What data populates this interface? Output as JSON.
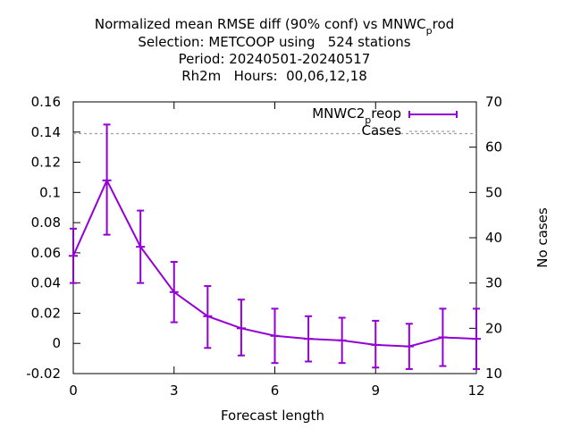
{
  "title": {
    "line1_main": "Normalized mean RMSE diff (90% conf) vs MNWC",
    "line1_sub": "p",
    "line1_end": "rod",
    "line2": "Selection: METCOOP using   524 stations",
    "line3": "Period: 20240501-20240517",
    "line4": "Rh2m   Hours:  00,06,12,18"
  },
  "chart_data": {
    "type": "line",
    "xlabel": "Forecast length",
    "ylabel_right": "No cases",
    "xlim": [
      0,
      12
    ],
    "ylim": [
      -0.02,
      0.16
    ],
    "y2lim": [
      10,
      70
    ],
    "x_ticks": [
      "0",
      "3",
      "6",
      "9",
      "12"
    ],
    "y_ticks": [
      "-0.02",
      "0",
      "0.02",
      "0.04",
      "0.06",
      "0.08",
      "0.1",
      "0.12",
      "0.14",
      "0.16"
    ],
    "y2_ticks": [
      "10",
      "20",
      "30",
      "40",
      "50",
      "60",
      "70"
    ],
    "grid": false,
    "legend_position": "top-right",
    "series": [
      {
        "name_main": "MNWC2",
        "name_sub": "p",
        "name_end": "reop",
        "color": "#9400d3",
        "x": [
          0,
          1,
          2,
          3,
          4,
          5,
          6,
          7,
          8,
          9,
          10,
          11,
          12
        ],
        "values": [
          0.058,
          0.108,
          0.064,
          0.034,
          0.018,
          0.01,
          0.005,
          0.003,
          0.002,
          -0.001,
          -0.002,
          0.004,
          0.003
        ],
        "err_low": [
          0.04,
          0.072,
          0.04,
          0.014,
          -0.003,
          -0.008,
          -0.013,
          -0.012,
          -0.013,
          -0.016,
          -0.017,
          -0.015,
          -0.017
        ],
        "err_high": [
          0.076,
          0.145,
          0.088,
          0.054,
          0.038,
          0.029,
          0.023,
          0.018,
          0.017,
          0.015,
          0.013,
          0.023,
          0.023
        ]
      },
      {
        "name": "Cases",
        "color": "#a0a0a0",
        "axis": "right",
        "x": [
          0,
          1,
          2,
          3,
          4,
          5,
          6,
          7,
          8,
          9,
          10,
          11,
          12
        ],
        "values": [
          63,
          63,
          63,
          63,
          63,
          63,
          63,
          63,
          63,
          63,
          63,
          63,
          63
        ]
      }
    ]
  }
}
